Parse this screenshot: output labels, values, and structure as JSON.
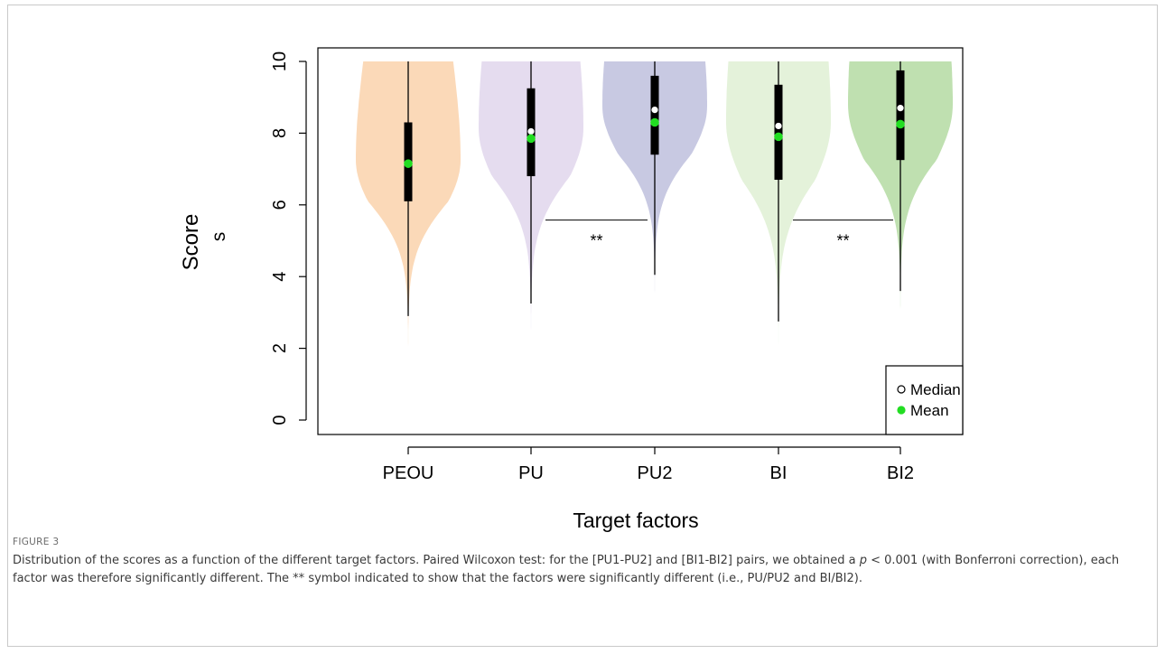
{
  "figure": {
    "label": "FIGURE 3",
    "caption_parts": [
      "Distribution of the scores as a function of the different target factors. Paired Wilcoxon test: for the [PU1-PU2] and [BI1-BI2] pairs, we obtained a ",
      "p",
      " < 0.001 (with Bonferroni correction), each factor was therefore significantly different. The ** symbol indicated to show that the factors were significantly different (i.e., PU/PU2 and BI/BI2)."
    ]
  },
  "chart_data": {
    "type": "violin",
    "xlabel": "Target factors",
    "ylabel": "Score",
    "ylabel_suffix": "s",
    "ylim": [
      0,
      10
    ],
    "yticks": [
      0,
      2,
      4,
      6,
      8,
      10
    ],
    "ytick_labels": [
      "0",
      "2",
      "4",
      "6",
      "8",
      "10"
    ],
    "categories": [
      "PEOU",
      "PU",
      "PU2",
      "BI",
      "BI2"
    ],
    "colors": [
      "#fbd9b8",
      "#e5dcef",
      "#c8c9e2",
      "#e4f2da",
      "#bfe0b0"
    ],
    "series": [
      {
        "category": "PEOU",
        "min": 0.5,
        "q1": 6.1,
        "median": 7.15,
        "mean": 7.15,
        "q3": 8.3,
        "whisker_low": 2.9,
        "whisker_high": 10.0,
        "max": 10.0
      },
      {
        "category": "PU",
        "min": 1.3,
        "q1": 6.8,
        "median": 8.05,
        "mean": 7.85,
        "q3": 9.25,
        "whisker_low": 3.25,
        "whisker_high": 10.0,
        "max": 10.0
      },
      {
        "category": "PU2",
        "min": 1.8,
        "q1": 7.4,
        "median": 8.65,
        "mean": 8.3,
        "q3": 9.6,
        "whisker_low": 4.05,
        "whisker_high": 10.0,
        "max": 10.0
      },
      {
        "category": "BI",
        "min": 0.1,
        "q1": 6.7,
        "median": 8.2,
        "mean": 7.9,
        "q3": 9.35,
        "whisker_low": 2.75,
        "whisker_high": 10.0,
        "max": 10.0
      },
      {
        "category": "BI2",
        "min": 2.0,
        "q1": 7.25,
        "median": 8.7,
        "mean": 8.25,
        "q3": 9.75,
        "whisker_low": 3.6,
        "whisker_high": 10.0,
        "max": 10.0
      }
    ],
    "significance": [
      {
        "from": "PU",
        "to": "PU2",
        "y": 5.4,
        "label": "**"
      },
      {
        "from": "BI",
        "to": "BI2",
        "y": 5.4,
        "label": "**"
      }
    ],
    "legend": {
      "position": "bottom-right",
      "items": [
        {
          "label": "Median",
          "marker": "white-circle"
        },
        {
          "label": "Mean",
          "marker": "green-dot"
        }
      ]
    },
    "mean_color": "#22dd22",
    "median_color": "#ffffff"
  }
}
